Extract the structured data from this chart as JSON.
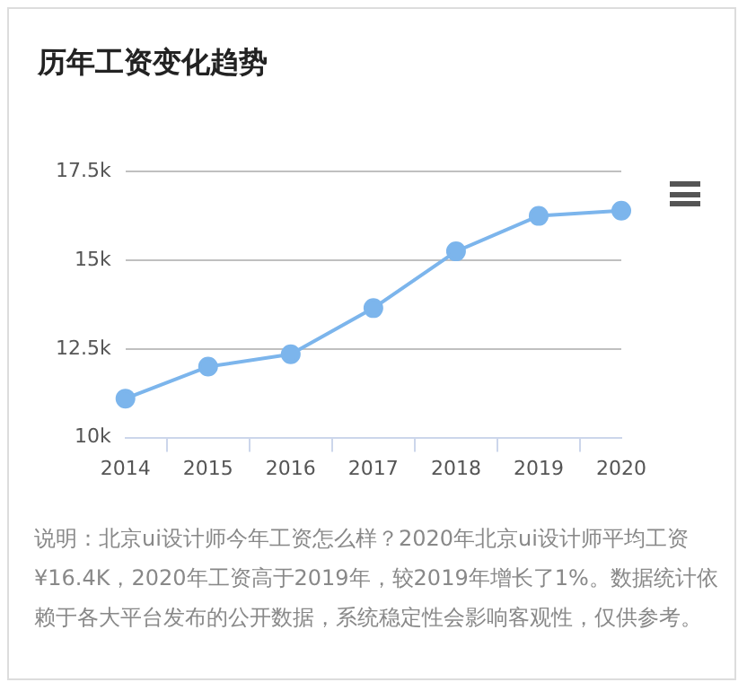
{
  "chart_data": {
    "type": "line",
    "title": "历年工资变化趋势",
    "categories": [
      "2014",
      "2015",
      "2016",
      "2017",
      "2018",
      "2019",
      "2020"
    ],
    "series": [
      {
        "color": "#7cb5ec",
        "values": [
          11100,
          12000,
          12350,
          13650,
          15250,
          16250,
          16400
        ]
      }
    ],
    "ylim": [
      10000,
      17500
    ],
    "yticks": [
      {
        "value": 10000,
        "label": "10k"
      },
      {
        "value": 12500,
        "label": "12.5k"
      },
      {
        "value": 15000,
        "label": "15k"
      },
      {
        "value": 17500,
        "label": "17.5k"
      }
    ],
    "grid": "y",
    "legend": false,
    "marker": "circle",
    "line_style": "solid",
    "annotations": [
      "说明：北京ui设计师今年工资怎么样？2020年北京ui设计师平均工资¥16.4K，2020年工资高于2019年，较2019年增长了1%。数据统计依赖于各大平台发布的公开数据，系统稳定性会影响客观性，仅供参考。"
    ]
  }
}
